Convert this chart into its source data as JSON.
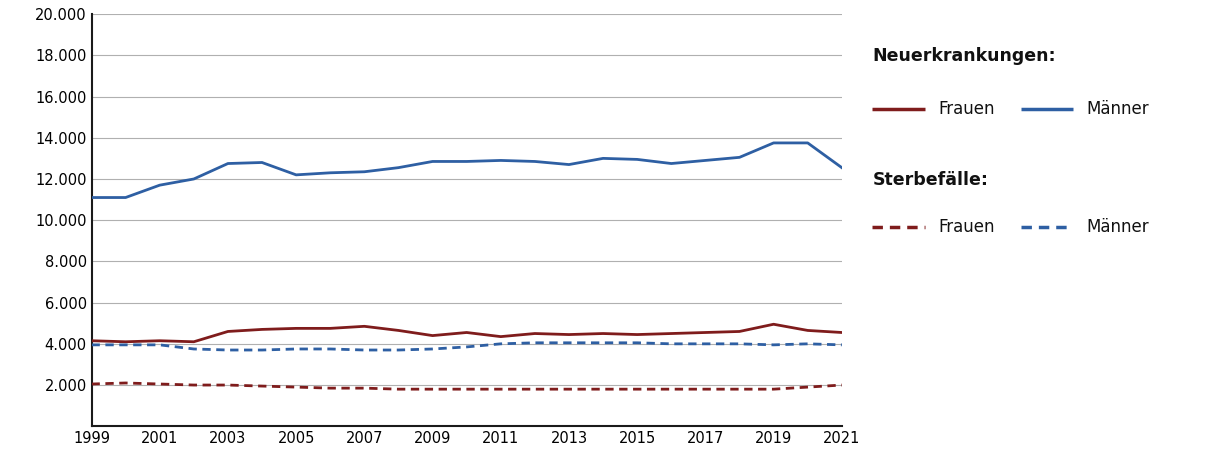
{
  "years": [
    1999,
    2000,
    2001,
    2002,
    2003,
    2004,
    2005,
    2006,
    2007,
    2008,
    2009,
    2010,
    2011,
    2012,
    2013,
    2014,
    2015,
    2016,
    2017,
    2018,
    2019,
    2020,
    2021
  ],
  "neuerkrankungen_maenner": [
    11100,
    11100,
    11700,
    12000,
    12750,
    12800,
    12200,
    12300,
    12350,
    12550,
    12850,
    12850,
    12900,
    12850,
    12700,
    13000,
    12950,
    12750,
    12900,
    13050,
    13750,
    13750,
    12550
  ],
  "neuerkrankungen_frauen": [
    4150,
    4100,
    4150,
    4100,
    4600,
    4700,
    4750,
    4750,
    4850,
    4650,
    4400,
    4550,
    4350,
    4500,
    4450,
    4500,
    4450,
    4500,
    4550,
    4600,
    4950,
    4650,
    4550
  ],
  "sterbefaelle_maenner": [
    3950,
    3950,
    3950,
    3750,
    3700,
    3700,
    3750,
    3750,
    3700,
    3700,
    3750,
    3850,
    4000,
    4050,
    4050,
    4050,
    4050,
    4000,
    4000,
    4000,
    3950,
    4000,
    3950
  ],
  "sterbefaelle_frauen": [
    2050,
    2100,
    2050,
    2000,
    2000,
    1950,
    1900,
    1850,
    1850,
    1800,
    1800,
    1800,
    1800,
    1800,
    1800,
    1800,
    1800,
    1800,
    1800,
    1800,
    1800,
    1900,
    2000
  ],
  "color_maenner": "#2e5fa3",
  "color_frauen": "#7f1c1c",
  "ylim": [
    0,
    20000
  ],
  "yticks": [
    0,
    2000,
    4000,
    6000,
    8000,
    10000,
    12000,
    14000,
    16000,
    18000,
    20000
  ],
  "xticks": [
    1999,
    2001,
    2003,
    2005,
    2007,
    2009,
    2011,
    2013,
    2015,
    2017,
    2019,
    2021
  ],
  "bg_color": "#ffffff",
  "grid_color": "#b0b0b0",
  "legend_neuerkrankungen": "Neuerkrankungen:",
  "legend_sterbefaelle": "Sterbefälle:",
  "legend_frauen": "Frauen",
  "legend_maenner": "Männer",
  "left_spine_color": "#1a1a1a",
  "bottom_spine_color": "#1a1a1a"
}
